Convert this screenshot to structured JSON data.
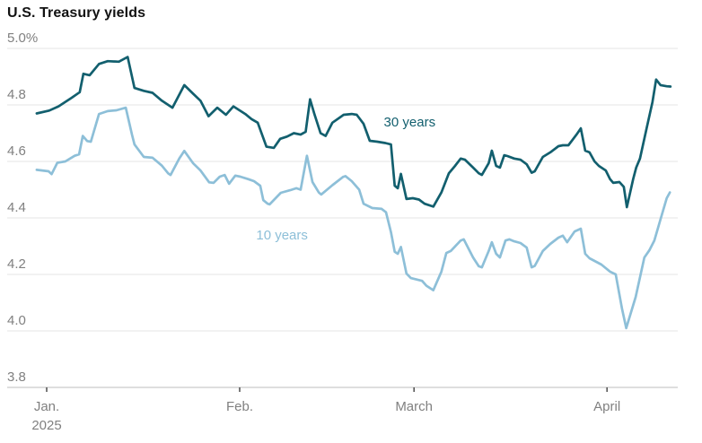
{
  "header": {
    "title": "U.S. Treasury yields"
  },
  "colors": {
    "background": "#ffffff",
    "grid": "#e4e4e4",
    "baseline": "#bdbdbd",
    "axis_text": "#808080",
    "title_text": "#121212",
    "tick_mark": "#222222",
    "series_30yr": "#125f6e",
    "series_10yr": "#8dbfd8"
  },
  "chart_data": {
    "type": "line",
    "title": "U.S. Treasury yields",
    "unit": "%",
    "grid": "horizontal",
    "legend": "inline-annotations",
    "y_axis": {
      "min": 3.8,
      "max": 5.0,
      "ticks": [
        {
          "value": 5.0,
          "label": "5.0%"
        },
        {
          "value": 4.8,
          "label": "4.8"
        },
        {
          "value": 4.6,
          "label": "4.6"
        },
        {
          "value": 4.4,
          "label": "4.4"
        },
        {
          "value": 4.2,
          "label": "4.2"
        },
        {
          "value": 4.0,
          "label": "4.0"
        },
        {
          "value": 3.8,
          "label": "3.8"
        }
      ]
    },
    "x_axis": {
      "description": "days since Jan 1, 2025",
      "range_days": [
        -2.5,
        101.5
      ],
      "ticks": [
        {
          "day": 0,
          "label": "Jan.",
          "sublabel": "2025"
        },
        {
          "day": 31,
          "label": "Feb."
        },
        {
          "day": 59,
          "label": "March"
        },
        {
          "day": 90,
          "label": "April"
        }
      ]
    },
    "series": [
      {
        "name": "30 years",
        "color": "#125f6e",
        "annotation": {
          "text": "30 years",
          "day": 58.3,
          "value": 4.74
        },
        "points": [
          [
            -1.6,
            4.77
          ],
          [
            0.4,
            4.78
          ],
          [
            1.9,
            4.795
          ],
          [
            4.0,
            4.825
          ],
          [
            5.3,
            4.845
          ],
          [
            5.9,
            4.91
          ],
          [
            6.9,
            4.905
          ],
          [
            8.4,
            4.945
          ],
          [
            9.8,
            4.955
          ],
          [
            11.6,
            4.953
          ],
          [
            13.0,
            4.97
          ],
          [
            14.1,
            4.86
          ],
          [
            15.6,
            4.85
          ],
          [
            17.0,
            4.843
          ],
          [
            18.5,
            4.815
          ],
          [
            20.2,
            4.79
          ],
          [
            22.1,
            4.87
          ],
          [
            23.5,
            4.84
          ],
          [
            24.7,
            4.815
          ],
          [
            26.0,
            4.76
          ],
          [
            27.4,
            4.79
          ],
          [
            28.8,
            4.765
          ],
          [
            30.0,
            4.795
          ],
          [
            31.9,
            4.768
          ],
          [
            32.9,
            4.75
          ],
          [
            33.9,
            4.737
          ],
          [
            35.3,
            4.652
          ],
          [
            36.5,
            4.648
          ],
          [
            37.5,
            4.68
          ],
          [
            38.6,
            4.688
          ],
          [
            39.7,
            4.7
          ],
          [
            40.8,
            4.695
          ],
          [
            41.6,
            4.705
          ],
          [
            42.3,
            4.82
          ],
          [
            43.0,
            4.768
          ],
          [
            44.0,
            4.7
          ],
          [
            44.8,
            4.69
          ],
          [
            45.9,
            4.737
          ],
          [
            47.7,
            4.765
          ],
          [
            49.0,
            4.768
          ],
          [
            49.8,
            4.765
          ],
          [
            50.9,
            4.733
          ],
          [
            51.9,
            4.673
          ],
          [
            53.1,
            4.67
          ],
          [
            54.4,
            4.665
          ],
          [
            55.3,
            4.66
          ],
          [
            55.9,
            4.514
          ],
          [
            56.4,
            4.505
          ],
          [
            56.9,
            4.556
          ],
          [
            57.8,
            4.467
          ],
          [
            58.8,
            4.47
          ],
          [
            59.8,
            4.465
          ],
          [
            60.7,
            4.45
          ],
          [
            62.1,
            4.44
          ],
          [
            63.4,
            4.49
          ],
          [
            64.6,
            4.558
          ],
          [
            65.6,
            4.584
          ],
          [
            66.5,
            4.61
          ],
          [
            67.2,
            4.606
          ],
          [
            68.5,
            4.578
          ],
          [
            69.4,
            4.558
          ],
          [
            69.9,
            4.552
          ],
          [
            71.0,
            4.594
          ],
          [
            71.5,
            4.638
          ],
          [
            72.2,
            4.584
          ],
          [
            72.8,
            4.578
          ],
          [
            73.5,
            4.622
          ],
          [
            74.0,
            4.619
          ],
          [
            75.1,
            4.61
          ],
          [
            76.1,
            4.606
          ],
          [
            77.1,
            4.59
          ],
          [
            77.9,
            4.56
          ],
          [
            78.4,
            4.565
          ],
          [
            79.7,
            4.616
          ],
          [
            80.9,
            4.632
          ],
          [
            82.2,
            4.654
          ],
          [
            82.9,
            4.657
          ],
          [
            83.8,
            4.657
          ],
          [
            85.1,
            4.695
          ],
          [
            85.8,
            4.717
          ],
          [
            86.5,
            4.638
          ],
          [
            87.2,
            4.632
          ],
          [
            88.0,
            4.6
          ],
          [
            88.7,
            4.584
          ],
          [
            89.8,
            4.568
          ],
          [
            90.5,
            4.537
          ],
          [
            91.0,
            4.524
          ],
          [
            92.0,
            4.527
          ],
          [
            92.7,
            4.51
          ],
          [
            93.2,
            4.438
          ],
          [
            94.2,
            4.537
          ],
          [
            94.7,
            4.578
          ],
          [
            95.3,
            4.61
          ],
          [
            96.4,
            4.72
          ],
          [
            97.3,
            4.81
          ],
          [
            97.9,
            4.89
          ],
          [
            98.6,
            4.87
          ],
          [
            99.6,
            4.866
          ],
          [
            100.2,
            4.865
          ]
        ]
      },
      {
        "name": "10 years",
        "color": "#8dbfd8",
        "annotation": {
          "text": "10 years",
          "day": 37.8,
          "value": 4.34
        },
        "points": [
          [
            -1.6,
            4.57
          ],
          [
            0.3,
            4.565
          ],
          [
            0.8,
            4.555
          ],
          [
            1.7,
            4.595
          ],
          [
            3.0,
            4.6
          ],
          [
            4.5,
            4.62
          ],
          [
            5.2,
            4.625
          ],
          [
            5.8,
            4.69
          ],
          [
            6.5,
            4.672
          ],
          [
            7.1,
            4.67
          ],
          [
            8.4,
            4.768
          ],
          [
            9.8,
            4.778
          ],
          [
            11.2,
            4.781
          ],
          [
            12.7,
            4.79
          ],
          [
            13.7,
            4.695
          ],
          [
            14.1,
            4.66
          ],
          [
            15.6,
            4.616
          ],
          [
            17.0,
            4.613
          ],
          [
            18.5,
            4.585
          ],
          [
            19.5,
            4.558
          ],
          [
            19.9,
            4.552
          ],
          [
            21.3,
            4.61
          ],
          [
            22.1,
            4.637
          ],
          [
            23.5,
            4.594
          ],
          [
            24.7,
            4.568
          ],
          [
            26.1,
            4.526
          ],
          [
            26.8,
            4.524
          ],
          [
            27.8,
            4.546
          ],
          [
            28.6,
            4.552
          ],
          [
            29.3,
            4.521
          ],
          [
            30.3,
            4.55
          ],
          [
            31.1,
            4.546
          ],
          [
            32.4,
            4.537
          ],
          [
            33.3,
            4.53
          ],
          [
            34.3,
            4.514
          ],
          [
            34.8,
            4.463
          ],
          [
            35.5,
            4.45
          ],
          [
            35.8,
            4.448
          ],
          [
            37.6,
            4.489
          ],
          [
            39.1,
            4.498
          ],
          [
            40.1,
            4.505
          ],
          [
            40.8,
            4.5
          ],
          [
            41.8,
            4.62
          ],
          [
            42.7,
            4.527
          ],
          [
            43.7,
            4.49
          ],
          [
            44.1,
            4.483
          ],
          [
            45.9,
            4.516
          ],
          [
            47.6,
            4.545
          ],
          [
            48.0,
            4.548
          ],
          [
            49.0,
            4.53
          ],
          [
            50.2,
            4.5
          ],
          [
            50.9,
            4.45
          ],
          [
            52.3,
            4.435
          ],
          [
            53.8,
            4.432
          ],
          [
            54.5,
            4.42
          ],
          [
            55.3,
            4.35
          ],
          [
            55.9,
            4.28
          ],
          [
            56.4,
            4.273
          ],
          [
            56.9,
            4.297
          ],
          [
            57.8,
            4.203
          ],
          [
            58.5,
            4.187
          ],
          [
            60.3,
            4.177
          ],
          [
            61.0,
            4.16
          ],
          [
            62.1,
            4.144
          ],
          [
            63.4,
            4.21
          ],
          [
            64.2,
            4.276
          ],
          [
            64.9,
            4.283
          ],
          [
            66.5,
            4.32
          ],
          [
            67.0,
            4.324
          ],
          [
            68.5,
            4.26
          ],
          [
            69.4,
            4.229
          ],
          [
            69.9,
            4.225
          ],
          [
            71.0,
            4.283
          ],
          [
            71.5,
            4.314
          ],
          [
            72.2,
            4.273
          ],
          [
            72.8,
            4.26
          ],
          [
            73.7,
            4.32
          ],
          [
            74.3,
            4.324
          ],
          [
            75.1,
            4.317
          ],
          [
            76.1,
            4.311
          ],
          [
            77.1,
            4.295
          ],
          [
            77.9,
            4.225
          ],
          [
            78.4,
            4.23
          ],
          [
            79.7,
            4.283
          ],
          [
            80.9,
            4.308
          ],
          [
            82.2,
            4.33
          ],
          [
            82.9,
            4.337
          ],
          [
            83.6,
            4.314
          ],
          [
            84.8,
            4.352
          ],
          [
            85.8,
            4.362
          ],
          [
            86.5,
            4.273
          ],
          [
            87.2,
            4.257
          ],
          [
            89.1,
            4.235
          ],
          [
            90.5,
            4.21
          ],
          [
            91.4,
            4.2
          ],
          [
            92.4,
            4.08
          ],
          [
            93.1,
            4.01
          ],
          [
            94.6,
            4.12
          ],
          [
            96.0,
            4.26
          ],
          [
            96.8,
            4.285
          ],
          [
            97.6,
            4.32
          ],
          [
            98.8,
            4.41
          ],
          [
            99.6,
            4.47
          ],
          [
            100.1,
            4.49
          ]
        ]
      }
    ]
  }
}
